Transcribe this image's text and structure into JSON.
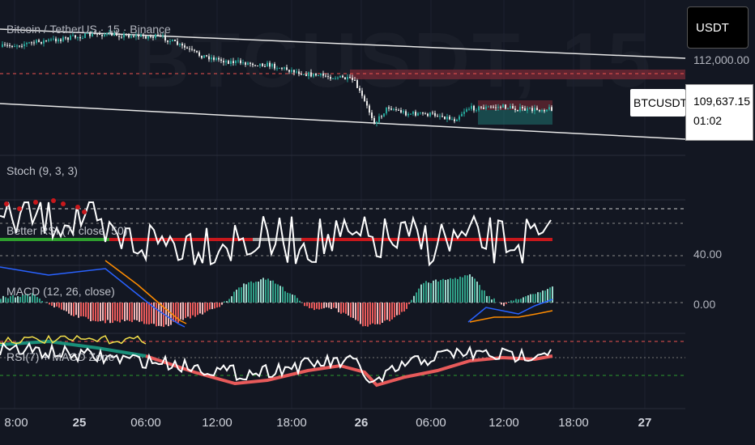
{
  "symbol_header": "Bitcoin / TetherUS · 15 · Binance",
  "watermark": "BTCUSDT, 15",
  "currency_button": "USDT",
  "price_axis": {
    "top_level": "112,000.00",
    "rsi_level": "40.00",
    "macd_level": "0.00"
  },
  "last_price": {
    "ticker": "BTCUSDT",
    "price": "109,637.15",
    "countdown": "01:02"
  },
  "panes": {
    "stoch": "Stoch (9, 3, 3)",
    "better_rsi": "Better RSI (7, close, 50)",
    "macd": "MACD (12, 26, close)",
    "rsi_macd": "RSI(7) + MACD Zone"
  },
  "time_axis": [
    {
      "label": "8:00",
      "bold": false
    },
    {
      "label": "25",
      "bold": true
    },
    {
      "label": "06:00",
      "bold": false
    },
    {
      "label": "12:00",
      "bold": false
    },
    {
      "label": "18:00",
      "bold": false
    },
    {
      "label": "26",
      "bold": true
    },
    {
      "label": "06:00",
      "bold": false
    },
    {
      "label": "12:00",
      "bold": false
    },
    {
      "label": "18:00",
      "bold": false
    },
    {
      "label": "27",
      "bold": true
    }
  ],
  "colors": {
    "background": "#131722",
    "bull": "#26a69a",
    "bear": "#ef5350",
    "line": "#ffffff",
    "resistance_zone": "#7a2a36",
    "rsi_green": "#2e9e2e",
    "rsi_red": "#c8181c",
    "ema_teal": "#1a8f7a",
    "ema_red": "#e85a5a",
    "macd_blue": "#2962ff",
    "signal_orange": "#ff8c00",
    "yellow": "#f5e14a"
  }
}
